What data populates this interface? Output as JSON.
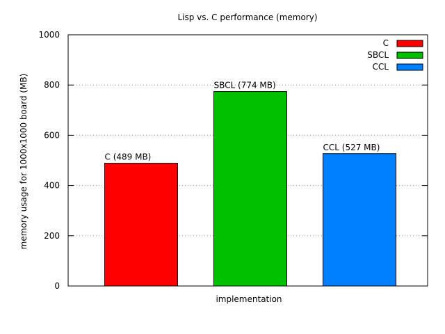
{
  "chart_data": {
    "type": "bar",
    "title": "Lisp vs. C performance (memory)",
    "xlabel": "implementation",
    "ylabel": "memory usage for 1000x1000 board (MB)",
    "ylim": [
      0,
      1000
    ],
    "yticks": [
      "0",
      "200",
      "400",
      "600",
      "800",
      "1000"
    ],
    "ytick_values": [
      0,
      200,
      400,
      600,
      800,
      1000
    ],
    "grid": "horizontal dotted",
    "legend_position": "top-right",
    "categories": [
      "C",
      "SBCL",
      "CCL"
    ],
    "series": [
      {
        "name": "C",
        "value": 489,
        "label": "C (489 MB)",
        "color": "#ff0000"
      },
      {
        "name": "SBCL",
        "value": 774,
        "label": "SBCL (774 MB)",
        "color": "#00c000"
      },
      {
        "name": "CCL",
        "value": 527,
        "label": "CCL (527 MB)",
        "color": "#0080ff"
      }
    ]
  }
}
